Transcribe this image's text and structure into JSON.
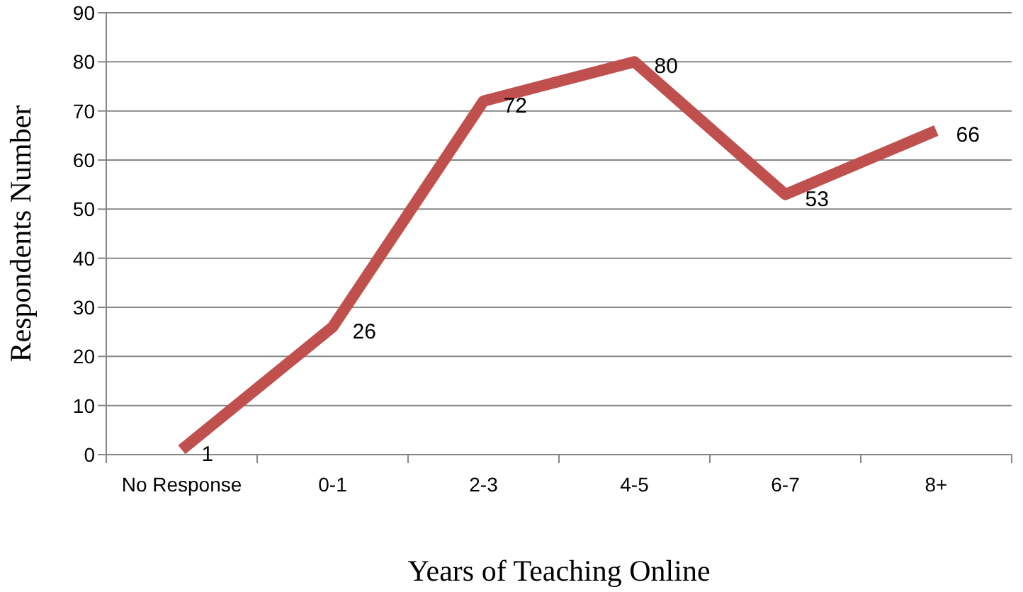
{
  "chart_data": {
    "type": "line",
    "xlabel": "Years of Teaching Online",
    "ylabel": "Respondents Number",
    "categories": [
      "No Response",
      "0-1",
      "2-3",
      "4-5",
      "6-7",
      "8+"
    ],
    "values": [
      1,
      26,
      72,
      80,
      53,
      66
    ],
    "color": "#c0504d",
    "ylim": [
      0,
      90
    ],
    "yticks": [
      0,
      10,
      20,
      30,
      40,
      50,
      60,
      70,
      80,
      90
    ],
    "grid": "y",
    "marker": "none",
    "data_labels": true
  }
}
